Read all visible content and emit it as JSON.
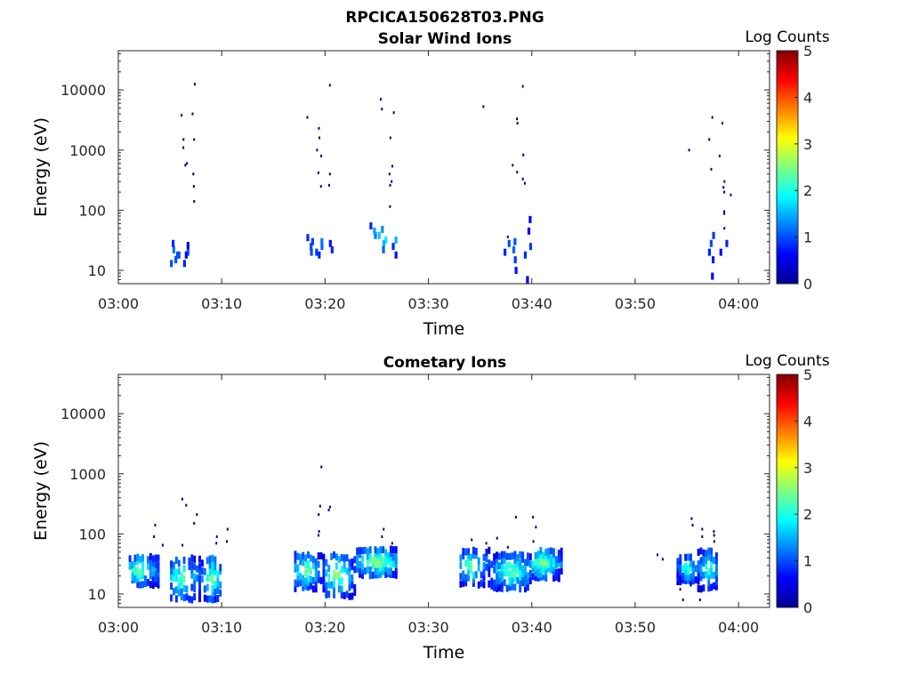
{
  "figure": {
    "title": "RPCICA150628T03.PNG"
  },
  "chart_data": [
    {
      "type": "heatmap",
      "title": "Solar Wind Ions",
      "xlabel": "Time",
      "ylabel": "Energy (eV)",
      "y_scale": "log",
      "xlim": [
        "03:00",
        "04:03"
      ],
      "ylim": [
        6,
        45000
      ],
      "x_ticks": [
        "03:00",
        "03:10",
        "03:20",
        "03:30",
        "03:40",
        "03:50",
        "04:00"
      ],
      "y_ticks": [
        "10",
        "100",
        "1000",
        "10000"
      ],
      "y_tick_values": [
        10,
        100,
        1000,
        10000
      ],
      "colorbar": {
        "label": "Log Counts",
        "min": 0,
        "max": 5,
        "ticks": [
          "0",
          "1",
          "2",
          "3",
          "4",
          "5"
        ],
        "colormap": "jet"
      },
      "grid": false,
      "cells": [
        [
          "03:05",
          13,
          1
        ],
        [
          "03:05",
          18,
          1
        ],
        [
          "03:05",
          22,
          1.2
        ],
        [
          "03:05",
          28,
          0.8
        ],
        [
          "03:05",
          18,
          1
        ],
        [
          "03:05",
          15,
          1
        ],
        [
          "03:06",
          13,
          0.8
        ],
        [
          "03:06",
          20,
          1
        ],
        [
          "03:06",
          26,
          0.6
        ],
        [
          "03:06",
          18,
          0.6
        ],
        [
          "03:18",
          20,
          1
        ],
        [
          "03:18",
          25,
          1
        ],
        [
          "03:18",
          30,
          0.9
        ],
        [
          "03:18",
          35,
          0.8
        ],
        [
          "03:19",
          18,
          0.8
        ],
        [
          "03:19",
          25,
          1.1
        ],
        [
          "03:19",
          30,
          1.2
        ],
        [
          "03:19",
          20,
          0.9
        ],
        [
          "03:20",
          22,
          0.8
        ],
        [
          "03:20",
          28,
          0.7
        ],
        [
          "03:24",
          38,
          1.2
        ],
        [
          "03:24",
          45,
          1.4
        ],
        [
          "03:25",
          38,
          1.6
        ],
        [
          "03:25",
          48,
          1.3
        ],
        [
          "03:25",
          32,
          1.8
        ],
        [
          "03:25",
          28,
          1.5
        ],
        [
          "03:25",
          22,
          1.1
        ],
        [
          "03:26",
          25,
          0.8
        ],
        [
          "03:26",
          18,
          0.7
        ],
        [
          "03:26",
          32,
          1.5
        ],
        [
          "03:24",
          55,
          0.8
        ],
        [
          "03:37",
          20,
          0.8
        ],
        [
          "03:37",
          28,
          1
        ],
        [
          "03:38",
          15,
          0.9
        ],
        [
          "03:38",
          22,
          1.1
        ],
        [
          "03:38",
          30,
          1
        ],
        [
          "03:38",
          10,
          0.7
        ],
        [
          "03:39",
          18,
          0.8
        ],
        [
          "03:39",
          25,
          0.9
        ],
        [
          "03:39",
          7,
          0.6
        ],
        [
          "03:39",
          45,
          0.6
        ],
        [
          "03:39",
          70,
          0.5
        ],
        [
          "03:57",
          20,
          0.8
        ],
        [
          "03:57",
          28,
          1
        ],
        [
          "03:57",
          38,
          0.9
        ],
        [
          "03:57",
          15,
          0.7
        ],
        [
          "03:57",
          8,
          0.6
        ],
        [
          "03:58",
          20,
          0.7
        ],
        [
          "03:58",
          28,
          0.8
        ]
      ],
      "points": [
        [
          "03:06",
          3800
        ],
        [
          "03:06",
          1500
        ],
        [
          "03:06",
          1100
        ],
        [
          "03:06",
          560
        ],
        [
          "03:06",
          600
        ],
        [
          "03:07",
          12500
        ],
        [
          "03:07",
          4000
        ],
        [
          "03:07",
          1500
        ],
        [
          "03:07",
          400
        ],
        [
          "03:07",
          250
        ],
        [
          "03:07",
          140
        ],
        [
          "03:18",
          3500
        ],
        [
          "03:19",
          2300
        ],
        [
          "03:19",
          1600
        ],
        [
          "03:19",
          1000
        ],
        [
          "03:19",
          800
        ],
        [
          "03:19",
          420
        ],
        [
          "03:19",
          250
        ],
        [
          "03:20",
          12000
        ],
        [
          "03:20",
          400
        ],
        [
          "03:20",
          260
        ],
        [
          "03:25",
          7000
        ],
        [
          "03:25",
          4800
        ],
        [
          "03:26",
          4200
        ],
        [
          "03:26",
          1600
        ],
        [
          "03:26",
          540
        ],
        [
          "03:26",
          400
        ],
        [
          "03:26",
          300
        ],
        [
          "03:26",
          260
        ],
        [
          "03:26",
          115
        ],
        [
          "03:35",
          5300
        ],
        [
          "03:38",
          3300
        ],
        [
          "03:38",
          2800
        ],
        [
          "03:38",
          560
        ],
        [
          "03:38",
          430
        ],
        [
          "03:39",
          330
        ],
        [
          "03:39",
          280
        ],
        [
          "03:39",
          830
        ],
        [
          "03:39",
          11500
        ],
        [
          "03:37",
          36
        ],
        [
          "03:55",
          1000
        ],
        [
          "03:57",
          3500
        ],
        [
          "03:57",
          1500
        ],
        [
          "03:57",
          480
        ],
        [
          "03:58",
          2800
        ],
        [
          "03:58",
          800
        ],
        [
          "03:58",
          300
        ],
        [
          "03:58",
          200
        ],
        [
          "03:58",
          95
        ],
        [
          "03:58",
          88
        ],
        [
          "03:58",
          50
        ],
        [
          "03:58",
          240
        ],
        [
          "03:59",
          180
        ]
      ]
    },
    {
      "type": "heatmap",
      "title": "Cometary Ions",
      "xlabel": "Time",
      "ylabel": "Energy (eV)",
      "y_scale": "log",
      "xlim": [
        "03:00",
        "04:03"
      ],
      "ylim": [
        6,
        45000
      ],
      "x_ticks": [
        "03:00",
        "03:10",
        "03:20",
        "03:30",
        "03:40",
        "03:50",
        "04:00"
      ],
      "y_ticks": [
        "10",
        "100",
        "1000",
        "10000"
      ],
      "y_tick_values": [
        10,
        100,
        1000,
        10000
      ],
      "colorbar": {
        "label": "Log Counts",
        "min": 0,
        "max": 5,
        "ticks": [
          "0",
          "1",
          "2",
          "3",
          "4",
          "5"
        ],
        "colormap": "jet"
      },
      "grid": false,
      "clusters": [
        {
          "t0": "03:01",
          "t1": "03:04",
          "emin": 14,
          "emax": 45,
          "peak": 2.6,
          "center": "03:02"
        },
        {
          "t0": "03:05",
          "t1": "03:08",
          "emin": 8,
          "emax": 45,
          "peak": 2.4,
          "center": "03:06"
        },
        {
          "t0": "03:08",
          "t1": "03:10",
          "emin": 8,
          "emax": 45,
          "peak": 2.5,
          "center": "03:09"
        },
        {
          "t0": "03:17",
          "t1": "03:20",
          "emin": 12,
          "emax": 50,
          "peak": 2.5,
          "center": "03:18"
        },
        {
          "t0": "03:20",
          "t1": "03:23",
          "emin": 9,
          "emax": 50,
          "peak": 2.6,
          "center": "03:21"
        },
        {
          "t0": "03:23",
          "t1": "03:27",
          "emin": 20,
          "emax": 60,
          "peak": 2.8,
          "center": "03:25"
        },
        {
          "t0": "03:33",
          "t1": "03:36",
          "emin": 14,
          "emax": 60,
          "peak": 2.4,
          "center": "03:34"
        },
        {
          "t0": "03:36",
          "t1": "03:40",
          "emin": 12,
          "emax": 50,
          "peak": 2.5,
          "center": "03:38"
        },
        {
          "t0": "03:40",
          "t1": "03:43",
          "emin": 18,
          "emax": 60,
          "peak": 2.7,
          "center": "03:41"
        },
        {
          "t0": "03:54",
          "t1": "03:56",
          "emin": 16,
          "emax": 45,
          "peak": 2.2,
          "center": "03:55"
        },
        {
          "t0": "03:56",
          "t1": "03:58",
          "emin": 12,
          "emax": 60,
          "peak": 2.3,
          "center": "03:57"
        }
      ],
      "points": [
        [
          "03:03",
          140
        ],
        [
          "03:03",
          90
        ],
        [
          "03:04",
          65
        ],
        [
          "03:06",
          380
        ],
        [
          "03:06",
          300
        ],
        [
          "03:06",
          65
        ],
        [
          "03:07",
          210
        ],
        [
          "03:07",
          150
        ],
        [
          "03:09",
          70
        ],
        [
          "03:09",
          90
        ],
        [
          "03:10",
          120
        ],
        [
          "03:10",
          75
        ],
        [
          "03:19",
          1300
        ],
        [
          "03:19",
          290
        ],
        [
          "03:19",
          210
        ],
        [
          "03:19",
          110
        ],
        [
          "03:19",
          95
        ],
        [
          "03:20",
          280
        ],
        [
          "03:20",
          250
        ],
        [
          "03:25",
          120
        ],
        [
          "03:25",
          90
        ],
        [
          "03:26",
          70
        ],
        [
          "03:34",
          80
        ],
        [
          "03:35",
          70
        ],
        [
          "03:36",
          85
        ],
        [
          "03:37",
          60
        ],
        [
          "03:38",
          190
        ],
        [
          "03:40",
          190
        ],
        [
          "03:40",
          130
        ],
        [
          "03:40",
          75
        ],
        [
          "03:52",
          45
        ],
        [
          "03:52",
          38
        ],
        [
          "03:54",
          15
        ],
        [
          "03:54",
          12
        ],
        [
          "03:54",
          8
        ],
        [
          "03:55",
          180
        ],
        [
          "03:55",
          140
        ],
        [
          "03:56",
          120
        ],
        [
          "03:56",
          90
        ],
        [
          "03:57",
          110
        ],
        [
          "03:57",
          95
        ],
        [
          "03:57",
          75
        ],
        [
          "03:56",
          8
        ],
        [
          "03:55",
          14
        ]
      ]
    }
  ]
}
